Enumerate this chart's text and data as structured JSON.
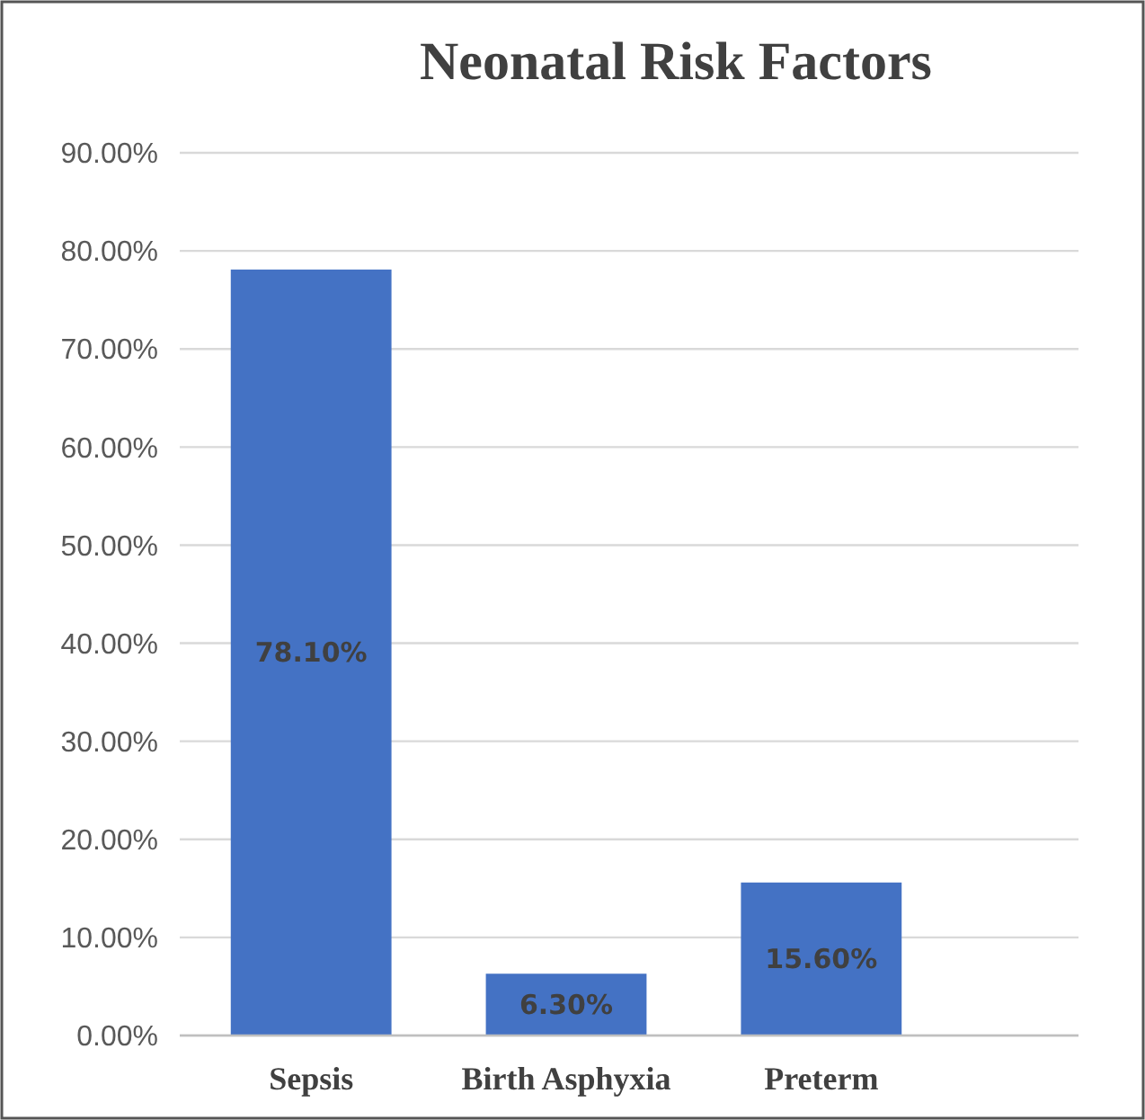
{
  "chart_data": {
    "type": "bar",
    "title": "Neonatal Risk Factors",
    "categories": [
      "Sepsis",
      "Birth Asphyxia",
      "Preterm"
    ],
    "values": [
      78.1,
      6.3,
      15.6
    ],
    "value_labels": [
      "78.10%",
      "6.30%",
      "15.60%"
    ],
    "color": "#4472c4",
    "ylim": [
      0,
      90
    ],
    "yticks": [
      {
        "value": 0,
        "label": "0.00%"
      },
      {
        "value": 10,
        "label": "10.00%"
      },
      {
        "value": 20,
        "label": "20.00%"
      },
      {
        "value": 30,
        "label": "30.00%"
      },
      {
        "value": 40,
        "label": "40.00%"
      },
      {
        "value": 50,
        "label": "50.00%"
      },
      {
        "value": 60,
        "label": "60.00%"
      },
      {
        "value": 70,
        "label": "70.00%"
      },
      {
        "value": 80,
        "label": "80.00%"
      },
      {
        "value": 90,
        "label": "90.00%"
      }
    ],
    "grid": "y"
  }
}
